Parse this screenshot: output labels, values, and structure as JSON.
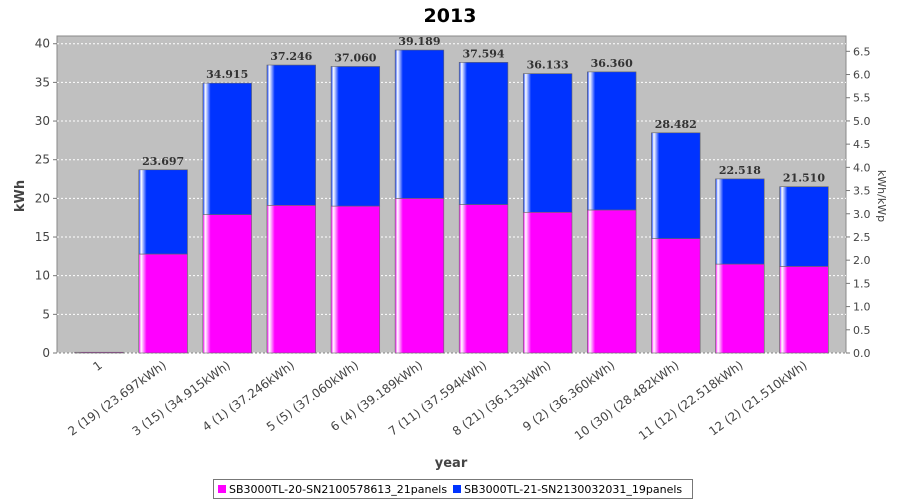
{
  "chart_data": {
    "type": "bar",
    "stacked": true,
    "title": "2013",
    "xlabel": "year",
    "ylabel": "kWh",
    "y2label": "kWh/kWp",
    "ylim": [
      0,
      41
    ],
    "y2lim": [
      0,
      6.83
    ],
    "yticks": [
      "0",
      "5",
      "10",
      "15",
      "20",
      "25",
      "30",
      "35",
      "40"
    ],
    "y2ticks": [
      "0.0",
      "0.5",
      "1.0",
      "1.5",
      "2.0",
      "2.5",
      "3.0",
      "3.5",
      "4.0",
      "4.5",
      "5.0",
      "5.5",
      "6.0",
      "6.5"
    ],
    "grid": true,
    "legend_position": "bottom",
    "categories": [
      "1",
      "2 (19)  (23.697kWh)",
      "3 (15)  (34.915kWh)",
      "4 (1)  (37.246kWh)",
      "5 (5)  (37.060kWh)",
      "6 (4)  (39.189kWh)",
      "7 (11)  (37.594kWh)",
      "8 (21)  (36.133kWh)",
      "9 (2)  (36.360kWh)",
      "10 (30)  (28.482kWh)",
      "11 (12)  (22.518kWh)",
      "12 (2)  (21.510kWh)"
    ],
    "series": [
      {
        "name": "SB3000TL-20-SN2100578613_21panels",
        "color": "#ff00ff",
        "values": [
          0.1,
          12.8,
          17.9,
          19.1,
          19.0,
          20.0,
          19.2,
          18.2,
          18.5,
          14.8,
          11.5,
          11.2
        ]
      },
      {
        "name": "SB3000TL-21-SN2130032031_19panels",
        "color": "#0033ff",
        "values": [
          0.0,
          10.897,
          17.015,
          18.146,
          18.06,
          19.189,
          18.394,
          17.933,
          17.86,
          13.682,
          11.018,
          10.31
        ]
      }
    ],
    "totals": [
      0.1,
      23.697,
      34.915,
      37.246,
      37.06,
      39.189,
      37.594,
      36.133,
      36.36,
      28.482,
      22.518,
      21.51
    ],
    "data_labels": [
      "",
      "23.697",
      "34.915",
      "37.246",
      "37.060",
      "39.189",
      "37.594",
      "36.133",
      "36.360",
      "28.482",
      "22.518",
      "21.510"
    ]
  }
}
